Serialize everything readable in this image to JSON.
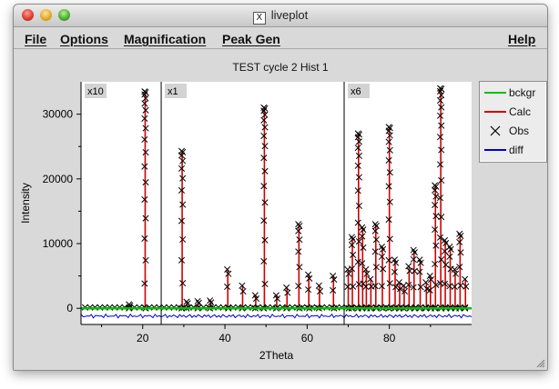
{
  "window": {
    "title": "liveplot"
  },
  "menubar": {
    "file": "File",
    "options": "Options",
    "magnification": "Magnification",
    "peak_gen": "Peak Gen",
    "help": "Help"
  },
  "plot": {
    "title": "TEST cycle 2 Hist 1"
  },
  "colors": {
    "bckgr": "#00c000",
    "calc": "#d00000",
    "obs": "#000000",
    "diff": "#0000d0"
  },
  "legend": [
    {
      "label": "bckgr",
      "color": "#00c000",
      "style": "line"
    },
    {
      "label": "Calc",
      "color": "#d00000",
      "style": "line"
    },
    {
      "label": "Obs",
      "color": "#000000",
      "style": "x"
    },
    {
      "label": "diff",
      "color": "#0000d0",
      "style": "line"
    }
  ],
  "chart_data": {
    "type": "line",
    "title": "TEST cycle 2 Hist 1",
    "xlabel": "2Theta",
    "ylabel": "Intensity",
    "xlim": [
      5,
      100
    ],
    "ylim": [
      -2500,
      35000
    ],
    "xticks": [
      20,
      40,
      60,
      80
    ],
    "yticks": [
      0,
      10000,
      20000,
      30000
    ],
    "magnification_regions": [
      {
        "start": 5,
        "label": "x10"
      },
      {
        "start": 24.5,
        "label": "x1"
      },
      {
        "start": 69,
        "label": "x6"
      }
    ],
    "background": 0,
    "diff_offset": -1200,
    "peaks": [
      {
        "x": 16.8,
        "y": 600
      },
      {
        "x": 20.6,
        "y": 33500
      },
      {
        "x": 29.6,
        "y": 24300
      },
      {
        "x": 30.8,
        "y": 1000
      },
      {
        "x": 33.5,
        "y": 1100
      },
      {
        "x": 36.5,
        "y": 1200
      },
      {
        "x": 40.7,
        "y": 6000
      },
      {
        "x": 44.3,
        "y": 3500
      },
      {
        "x": 47.5,
        "y": 2000
      },
      {
        "x": 49.6,
        "y": 31000
      },
      {
        "x": 52.6,
        "y": 2000
      },
      {
        "x": 55.1,
        "y": 3200
      },
      {
        "x": 58.0,
        "y": 13000
      },
      {
        "x": 60.4,
        "y": 5200
      },
      {
        "x": 63.0,
        "y": 3500
      },
      {
        "x": 66.4,
        "y": 5000
      },
      {
        "x": 70.0,
        "y": 6000
      },
      {
        "x": 71.0,
        "y": 11000
      },
      {
        "x": 72.5,
        "y": 27000
      },
      {
        "x": 73.5,
        "y": 12500
      },
      {
        "x": 74.4,
        "y": 6000
      },
      {
        "x": 75.5,
        "y": 4500
      },
      {
        "x": 76.7,
        "y": 13000
      },
      {
        "x": 78.3,
        "y": 9500
      },
      {
        "x": 80.0,
        "y": 28000
      },
      {
        "x": 81.4,
        "y": 7500
      },
      {
        "x": 82.5,
        "y": 4000
      },
      {
        "x": 83.6,
        "y": 3500
      },
      {
        "x": 84.8,
        "y": 6500
      },
      {
        "x": 86.0,
        "y": 9000
      },
      {
        "x": 87.5,
        "y": 7500
      },
      {
        "x": 89.0,
        "y": 4000
      },
      {
        "x": 90.0,
        "y": 5000
      },
      {
        "x": 91.2,
        "y": 19000
      },
      {
        "x": 92.5,
        "y": 34000
      },
      {
        "x": 93.6,
        "y": 10500
      },
      {
        "x": 94.8,
        "y": 9500
      },
      {
        "x": 96.0,
        "y": 6000
      },
      {
        "x": 97.2,
        "y": 11500
      },
      {
        "x": 98.5,
        "y": 4500
      }
    ]
  }
}
